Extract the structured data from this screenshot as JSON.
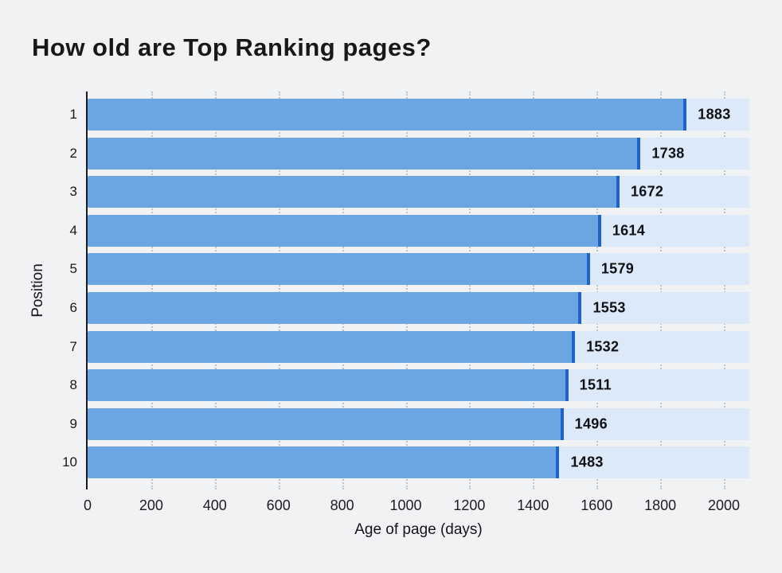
{
  "chart_data": {
    "type": "bar",
    "orientation": "horizontal",
    "title": "How old are Top Ranking pages?",
    "xlabel": "Age of page (days)",
    "ylabel": "Position",
    "categories": [
      "1",
      "2",
      "3",
      "4",
      "5",
      "6",
      "7",
      "8",
      "9",
      "10"
    ],
    "values": [
      1883,
      1738,
      1672,
      1614,
      1579,
      1553,
      1532,
      1511,
      1496,
      1483
    ],
    "value_labels": [
      "1883",
      "1738",
      "1672",
      "1614",
      "1579",
      "1553",
      "1532",
      "1511",
      "1496",
      "1483"
    ],
    "x_ticks": [
      0,
      200,
      400,
      600,
      800,
      1000,
      1200,
      1400,
      1600,
      1800,
      2000
    ],
    "xlim": [
      0,
      2080
    ],
    "grid": "vertical-dotted",
    "legend": "none",
    "colors": {
      "background": "#F1F2F4",
      "bar_fill": "#6CA6E2",
      "bar_cap": "#1E63C8",
      "bar_track": "#DBE9F8",
      "gridline": "#949AA6",
      "text": "#17181A"
    }
  }
}
